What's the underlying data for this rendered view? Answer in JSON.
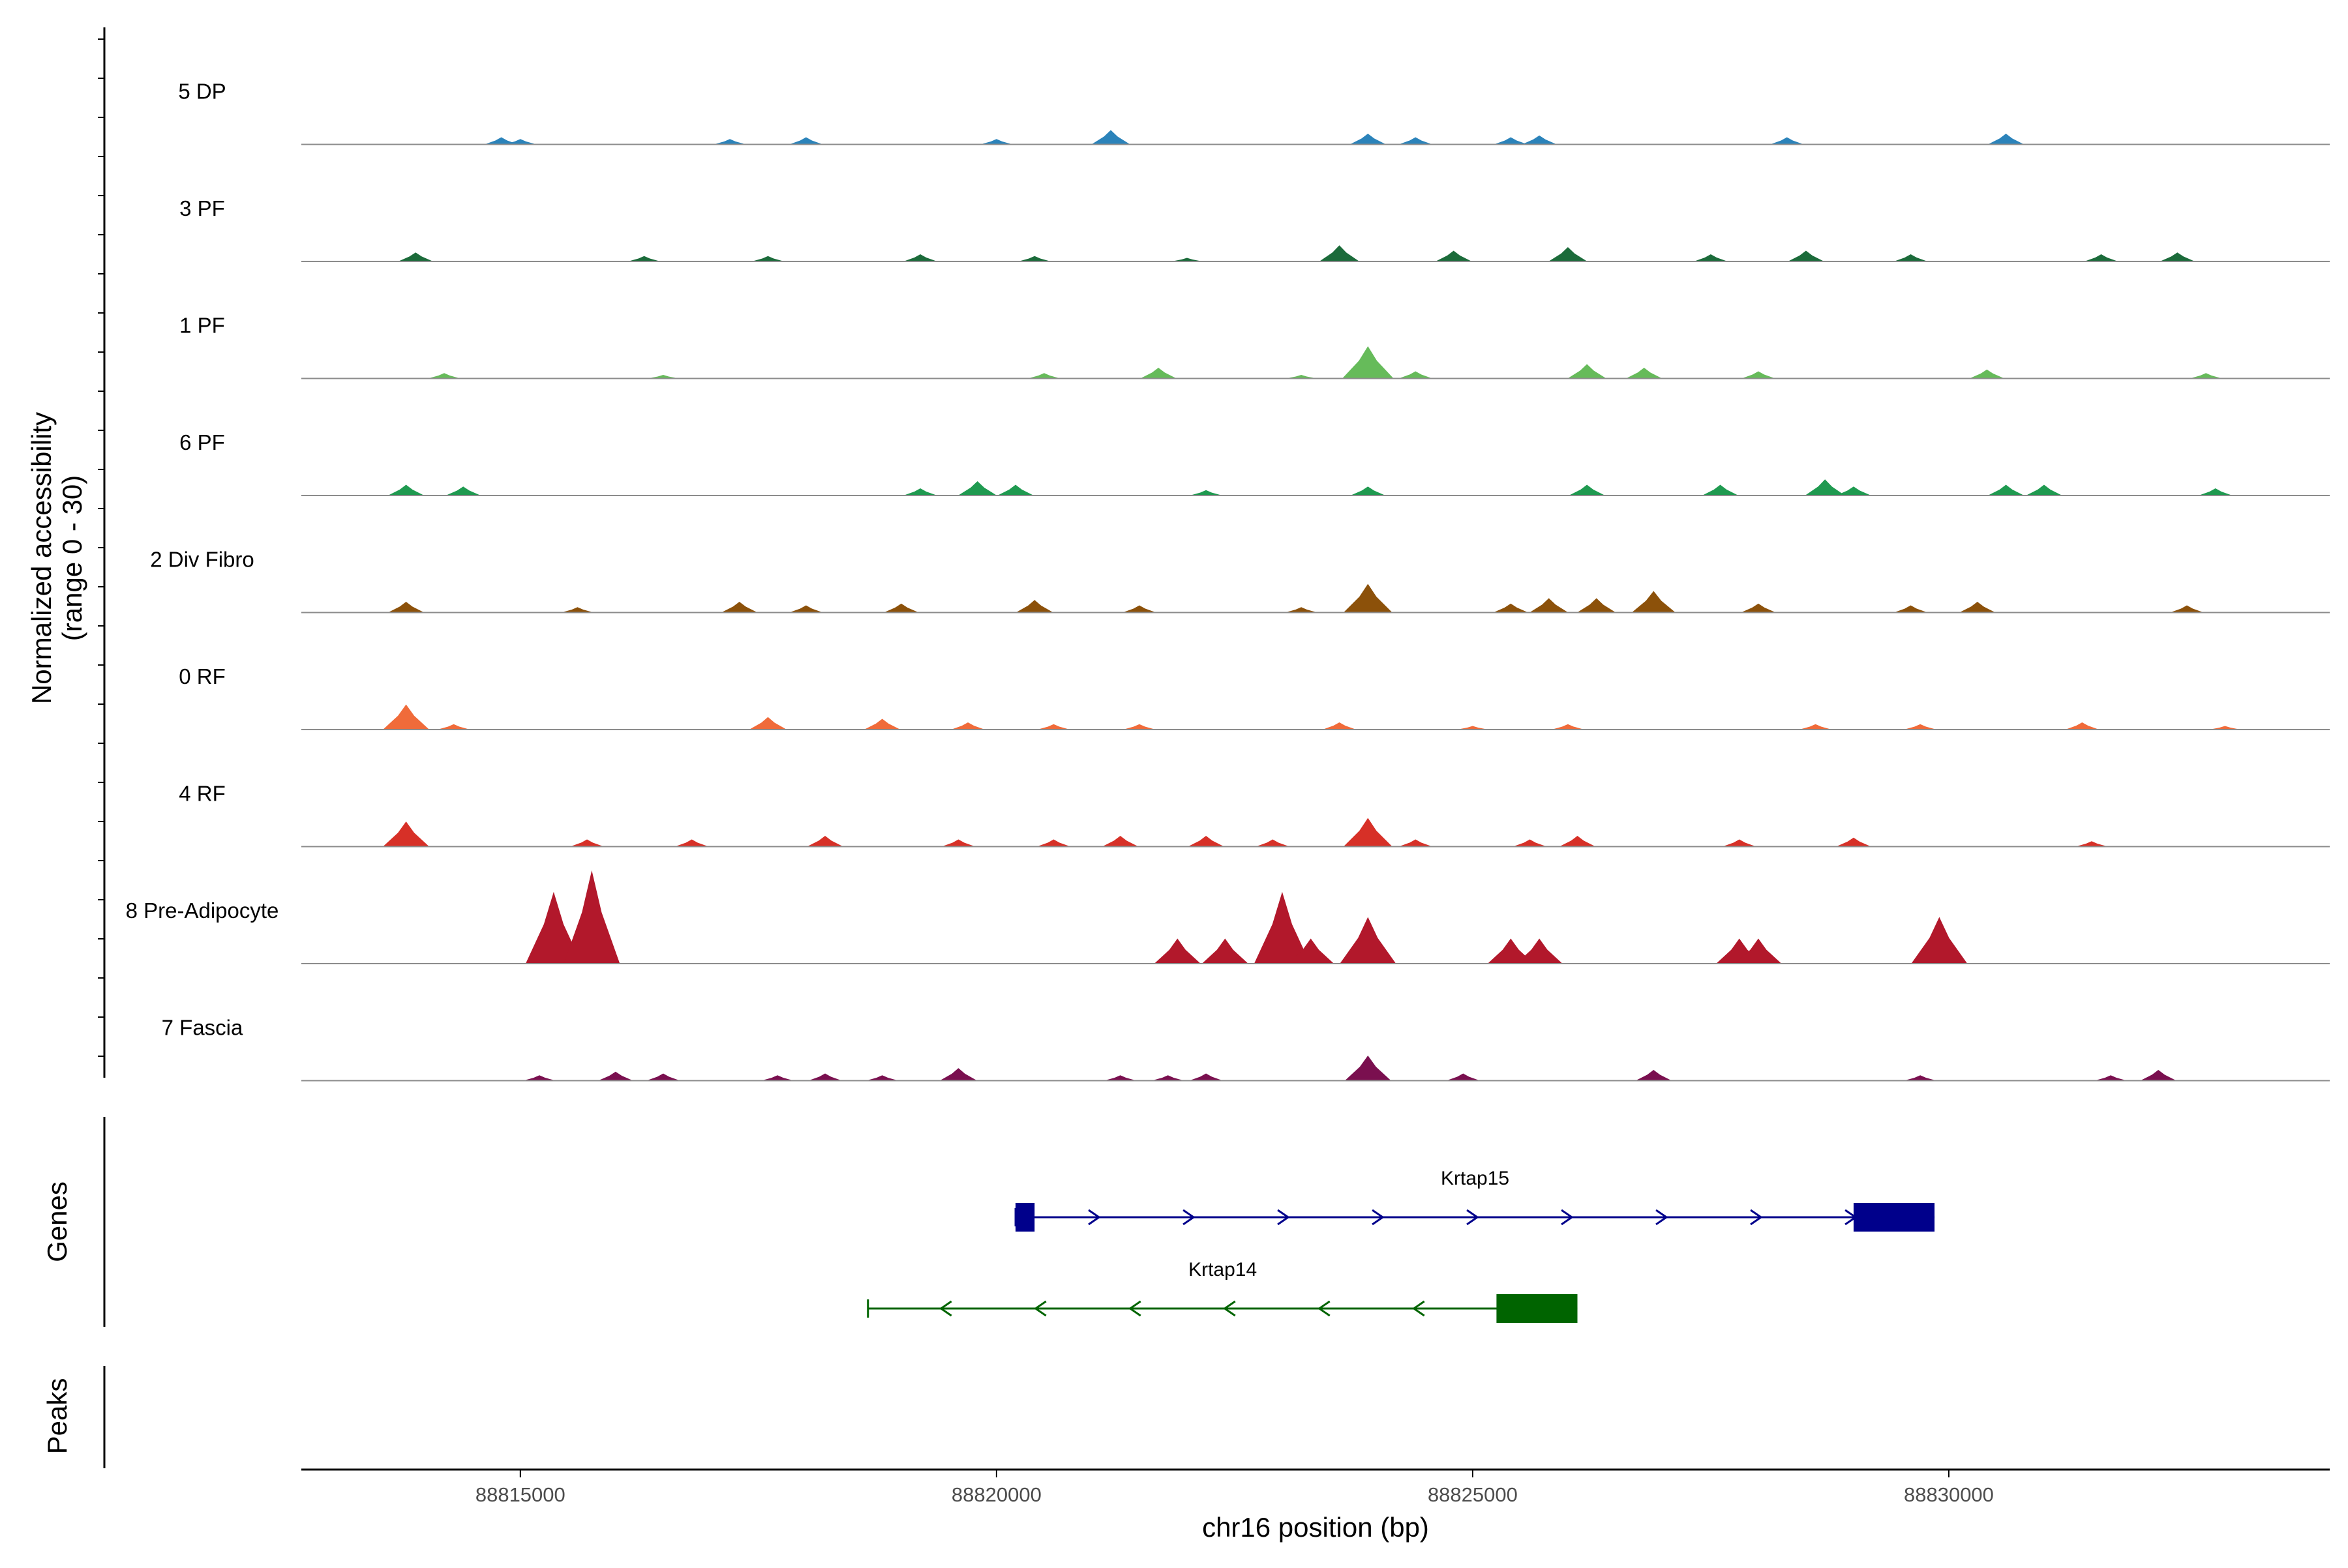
{
  "chart_data": {
    "type": "area",
    "title": "",
    "ylabel_line1": "Normalized accessibility",
    "ylabel_line2": "(range 0 - 30)",
    "ylim": [
      0,
      30
    ],
    "xlabel": "chr16 position (bp)",
    "xlim": [
      88812700,
      88834000
    ],
    "xticks": [
      88815000,
      88820000,
      88825000,
      88830000
    ],
    "xtick_labels": [
      "88815000",
      "88820000",
      "88825000",
      "88830000"
    ],
    "genes_label": "Genes",
    "peaks_label": "Peaks",
    "tracks": [
      {
        "name": "5 DP",
        "color": "#2b83ba",
        "peaks": [
          [
            88814800,
            2
          ],
          [
            88815000,
            1.5
          ],
          [
            88817200,
            1.5
          ],
          [
            88818000,
            2
          ],
          [
            88820000,
            1.5
          ],
          [
            88821200,
            4
          ],
          [
            88823900,
            3
          ],
          [
            88824400,
            2
          ],
          [
            88825400,
            2
          ],
          [
            88825700,
            2.5
          ],
          [
            88828300,
            2
          ],
          [
            88830600,
            3
          ]
        ]
      },
      {
        "name": "3 PF",
        "color": "#1b6b3a",
        "peaks": [
          [
            88813900,
            2.5
          ],
          [
            88816300,
            1.5
          ],
          [
            88817600,
            1.5
          ],
          [
            88819200,
            2
          ],
          [
            88820400,
            1.5
          ],
          [
            88822000,
            1
          ],
          [
            88823600,
            4.5
          ],
          [
            88824800,
            3
          ],
          [
            88826000,
            4
          ],
          [
            88827500,
            2
          ],
          [
            88828500,
            3
          ],
          [
            88829600,
            2
          ],
          [
            88831600,
            2
          ],
          [
            88832400,
            2.5
          ]
        ]
      },
      {
        "name": "1 PF",
        "color": "#66bb5a",
        "peaks": [
          [
            88814200,
            1.5
          ],
          [
            88816500,
            1
          ],
          [
            88820500,
            1.5
          ],
          [
            88821700,
            3
          ],
          [
            88823200,
            1
          ],
          [
            88823900,
            9
          ],
          [
            88824400,
            2
          ],
          [
            88826200,
            4
          ],
          [
            88826800,
            3
          ],
          [
            88828000,
            2
          ],
          [
            88830400,
            2.5
          ],
          [
            88832700,
            1.5
          ]
        ]
      },
      {
        "name": "6 PF",
        "color": "#1f9a50",
        "peaks": [
          [
            88813800,
            3
          ],
          [
            88814400,
            2.5
          ],
          [
            88819200,
            2
          ],
          [
            88819800,
            4
          ],
          [
            88820200,
            3
          ],
          [
            88822200,
            1.5
          ],
          [
            88823900,
            2.5
          ],
          [
            88826200,
            3
          ],
          [
            88827600,
            3
          ],
          [
            88828700,
            4.5
          ],
          [
            88829000,
            2.5
          ],
          [
            88830600,
            3
          ],
          [
            88831000,
            3
          ],
          [
            88832800,
            2
          ]
        ]
      },
      {
        "name": "2 Div Fibro",
        "color": "#8c510a",
        "peaks": [
          [
            88813800,
            3
          ],
          [
            88815600,
            1.5
          ],
          [
            88817300,
            3
          ],
          [
            88818000,
            2
          ],
          [
            88819000,
            2.5
          ],
          [
            88820400,
            3.5
          ],
          [
            88821500,
            2
          ],
          [
            88823200,
            1.5
          ],
          [
            88823900,
            8
          ],
          [
            88825400,
            2.5
          ],
          [
            88825800,
            4
          ],
          [
            88826300,
            4
          ],
          [
            88826900,
            6
          ],
          [
            88828000,
            2.5
          ],
          [
            88829600,
            2
          ],
          [
            88830300,
            3
          ],
          [
            88832500,
            2
          ]
        ]
      },
      {
        "name": "0 RF",
        "color": "#f06b3a",
        "peaks": [
          [
            88813800,
            7
          ],
          [
            88814300,
            1.5
          ],
          [
            88817600,
            3.5
          ],
          [
            88818800,
            3
          ],
          [
            88819700,
            2
          ],
          [
            88820600,
            1.5
          ],
          [
            88821500,
            1.5
          ],
          [
            88823600,
            2
          ],
          [
            88825000,
            1
          ],
          [
            88826000,
            1.5
          ],
          [
            88828600,
            1.5
          ],
          [
            88829700,
            1.5
          ],
          [
            88831400,
            2
          ],
          [
            88832900,
            1
          ]
        ]
      },
      {
        "name": "4 RF",
        "color": "#d73027",
        "peaks": [
          [
            88813800,
            7
          ],
          [
            88815700,
            2
          ],
          [
            88816800,
            2
          ],
          [
            88818200,
            3
          ],
          [
            88819600,
            2
          ],
          [
            88820600,
            2
          ],
          [
            88821300,
            3
          ],
          [
            88822200,
            3
          ],
          [
            88822900,
            2
          ],
          [
            88823900,
            8
          ],
          [
            88824400,
            2
          ],
          [
            88825600,
            2
          ],
          [
            88826100,
            3
          ],
          [
            88827800,
            2
          ],
          [
            88829000,
            2.5
          ],
          [
            88831500,
            1.5
          ]
        ]
      },
      {
        "name": "8 Pre-Adipocyte",
        "color": "#b2182b",
        "peaks": [
          [
            88815350,
            20
          ],
          [
            88815750,
            26
          ],
          [
            88821900,
            7
          ],
          [
            88822400,
            7
          ],
          [
            88823000,
            20
          ],
          [
            88823300,
            7
          ],
          [
            88823900,
            13
          ],
          [
            88825400,
            7
          ],
          [
            88825700,
            7
          ],
          [
            88827800,
            7
          ],
          [
            88828000,
            7
          ],
          [
            88829900,
            13
          ]
        ]
      },
      {
        "name": "7 Fascia",
        "color": "#7a0f4f",
        "peaks": [
          [
            88815200,
            1.5
          ],
          [
            88816000,
            2.5
          ],
          [
            88816500,
            2
          ],
          [
            88817700,
            1.5
          ],
          [
            88818200,
            2
          ],
          [
            88818800,
            1.5
          ],
          [
            88819600,
            3.5
          ],
          [
            88821300,
            1.5
          ],
          [
            88821800,
            1.5
          ],
          [
            88822200,
            2
          ],
          [
            88823900,
            7
          ],
          [
            88824900,
            2
          ],
          [
            88826900,
            3
          ],
          [
            88829700,
            1.5
          ],
          [
            88831700,
            1.5
          ],
          [
            88832200,
            3
          ]
        ]
      }
    ],
    "gene_models": [
      {
        "name": "Krtap15",
        "color": "#00008b",
        "strand": "+",
        "start": 88820200,
        "end": 88829850,
        "exons": [
          [
            88820200,
            88820400
          ],
          [
            88829000,
            88829850
          ]
        ]
      },
      {
        "name": "Krtap14",
        "color": "#006400",
        "strand": "-",
        "start": 88818650,
        "end": 88826100,
        "exons": [
          [
            88825250,
            88826100
          ]
        ]
      }
    ]
  }
}
